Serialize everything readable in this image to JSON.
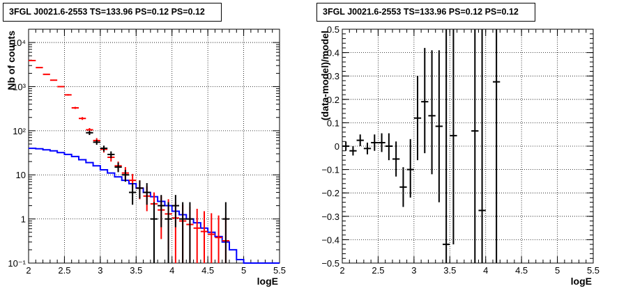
{
  "chart_data": [
    {
      "type": "histogram-errorbars",
      "title": "3FGL J0021.6-2553 TS=133.96 PS=0.12 PS=0.12",
      "xlabel": "logE",
      "ylabel": "Nb of counts",
      "xlim": [
        2,
        5.5
      ],
      "ylim": [
        0.1,
        20000
      ],
      "yscale": "log",
      "grid": true,
      "xticks": [
        "2",
        "2.5",
        "3",
        "3.5",
        "4",
        "4.5",
        "5",
        "5.5"
      ],
      "yticks": [
        "10⁻¹",
        "1",
        "10",
        "10²",
        "10³",
        "10⁴"
      ],
      "ytick_values": [
        0.1,
        1,
        10,
        100,
        1000,
        10000
      ],
      "colors": {
        "model_total": "#ff0000",
        "model_source": "#0000ff",
        "data": "#000000"
      },
      "bin_edges": [
        2.0,
        2.1,
        2.2,
        2.3,
        2.4,
        2.5,
        2.6,
        2.7,
        2.8,
        2.9,
        3.0,
        3.1,
        3.2,
        3.3,
        3.4,
        3.5,
        3.6,
        3.7,
        3.8,
        3.9,
        4.0,
        4.1,
        4.2,
        4.3,
        4.4,
        4.5,
        4.6,
        4.7,
        4.8,
        4.9,
        5.0,
        5.1,
        5.2,
        5.3,
        5.4,
        5.5
      ],
      "series": [
        {
          "role": "model_source",
          "values": [
            40,
            39,
            37,
            35,
            32,
            29,
            26,
            22,
            19,
            16,
            13,
            11,
            9,
            7.5,
            6.3,
            5.0,
            4.0,
            3.2,
            2.5,
            2.0,
            1.5,
            1.25,
            1.0,
            0.82,
            0.62,
            0.5,
            0.4,
            0.3,
            0.2,
            0.12,
            0.1,
            0.1,
            0.1,
            0.1,
            0.1
          ]
        },
        {
          "role": "model_total",
          "x": [
            2.05,
            2.15,
            2.25,
            2.35,
            2.45,
            2.55,
            2.65,
            2.75,
            2.85,
            2.95,
            3.05,
            3.15,
            3.25,
            3.35,
            3.45,
            3.55,
            3.65,
            3.75,
            3.85,
            3.95,
            4.05,
            4.15,
            4.25,
            4.35,
            4.45,
            4.55,
            4.65,
            4.75
          ],
          "y": [
            3900,
            2700,
            1900,
            1400,
            1000,
            650,
            330,
            190,
            105,
            60,
            38,
            25,
            16,
            11,
            7.5,
            5.0,
            3.3,
            2.2,
            1.6,
            1.3,
            1.05,
            0.9,
            0.75,
            0.62,
            0.52,
            0.45,
            0.38,
            0.32
          ],
          "ylo": [
            3840,
            2650,
            1860,
            1360,
            970,
            625,
            312,
            176,
            95,
            52,
            32,
            20,
            12,
            7.5,
            4.8,
            2.8,
            1.5,
            0.75,
            0.35,
            0.2,
            0.1,
            0.1,
            0.1,
            0.1,
            0.1,
            0.1,
            0.1,
            0.1
          ],
          "yhi": [
            3960,
            2750,
            1940,
            1440,
            1030,
            675,
            348,
            204,
            115,
            68,
            44,
            30,
            20,
            15,
            10.5,
            7.5,
            5.5,
            4.0,
            3.3,
            2.8,
            2.4,
            2.1,
            1.9,
            1.7,
            1.5,
            1.35,
            1.2,
            1.1
          ]
        },
        {
          "role": "data",
          "x": [
            2.85,
            2.95,
            3.05,
            3.15,
            3.25,
            3.35,
            3.45,
            3.55,
            3.65,
            3.75,
            3.85,
            3.95,
            4.05,
            4.15,
            4.25,
            4.75
          ],
          "y": [
            90,
            55,
            40,
            29,
            15,
            10,
            4,
            5,
            4,
            1,
            2,
            1,
            2,
            1,
            1,
            1
          ],
          "ylo": [
            80,
            48,
            34,
            24,
            11.5,
            7,
            2.1,
            2.9,
            2.1,
            0.1,
            0.65,
            0.1,
            0.65,
            0.1,
            0.1,
            0.1
          ],
          "yhi": [
            100,
            62,
            46,
            34,
            19,
            13,
            6.5,
            7.5,
            6.5,
            2.4,
            3.5,
            2.4,
            3.5,
            2.4,
            2.4,
            2.4
          ]
        }
      ]
    },
    {
      "type": "scatter-errorbars",
      "title": "3FGL J0021.6-2553 TS=133.96 PS=0.12 PS=0.12",
      "xlabel": "logE",
      "ylabel": "(data-model)/model",
      "xlim": [
        2,
        5.5
      ],
      "ylim": [
        -0.5,
        0.5
      ],
      "grid": true,
      "xticks": [
        "2",
        "2.5",
        "3",
        "3.5",
        "4",
        "4.5",
        "5",
        "5.5"
      ],
      "yticks": [
        "−0.5",
        "−0.4",
        "−0.3",
        "−0.2",
        "−0.1",
        "0",
        "0.1",
        "0.2",
        "0.3",
        "0.4",
        "0.5"
      ],
      "ytick_values": [
        -0.5,
        -0.4,
        -0.3,
        -0.2,
        -0.1,
        0,
        0.1,
        0.2,
        0.3,
        0.4,
        0.5
      ],
      "points": {
        "x": [
          2.05,
          2.15,
          2.25,
          2.35,
          2.45,
          2.55,
          2.65,
          2.75,
          2.85,
          2.95,
          3.05,
          3.15,
          3.25,
          3.35,
          3.45,
          3.55,
          3.85,
          3.95,
          4.15
        ],
        "y": [
          0.0,
          -0.02,
          0.025,
          -0.01,
          0.015,
          0.015,
          0.0,
          -0.055,
          -0.175,
          -0.1,
          0.12,
          0.19,
          0.13,
          0.085,
          -0.42,
          0.045,
          0.065,
          -0.275,
          0.275
        ],
        "ylo": [
          -0.02,
          -0.04,
          0.0,
          -0.035,
          -0.02,
          -0.025,
          -0.06,
          -0.13,
          -0.26,
          -0.22,
          -0.06,
          -0.03,
          -0.12,
          -0.24,
          -0.5,
          -0.42,
          -0.5,
          -0.5,
          -0.5
        ],
        "yhi": [
          0.02,
          0.0,
          0.05,
          0.015,
          0.05,
          0.055,
          0.055,
          0.02,
          -0.09,
          0.03,
          0.3,
          0.42,
          0.41,
          0.41,
          0.5,
          0.5,
          0.5,
          0.5,
          0.5
        ]
      }
    }
  ]
}
